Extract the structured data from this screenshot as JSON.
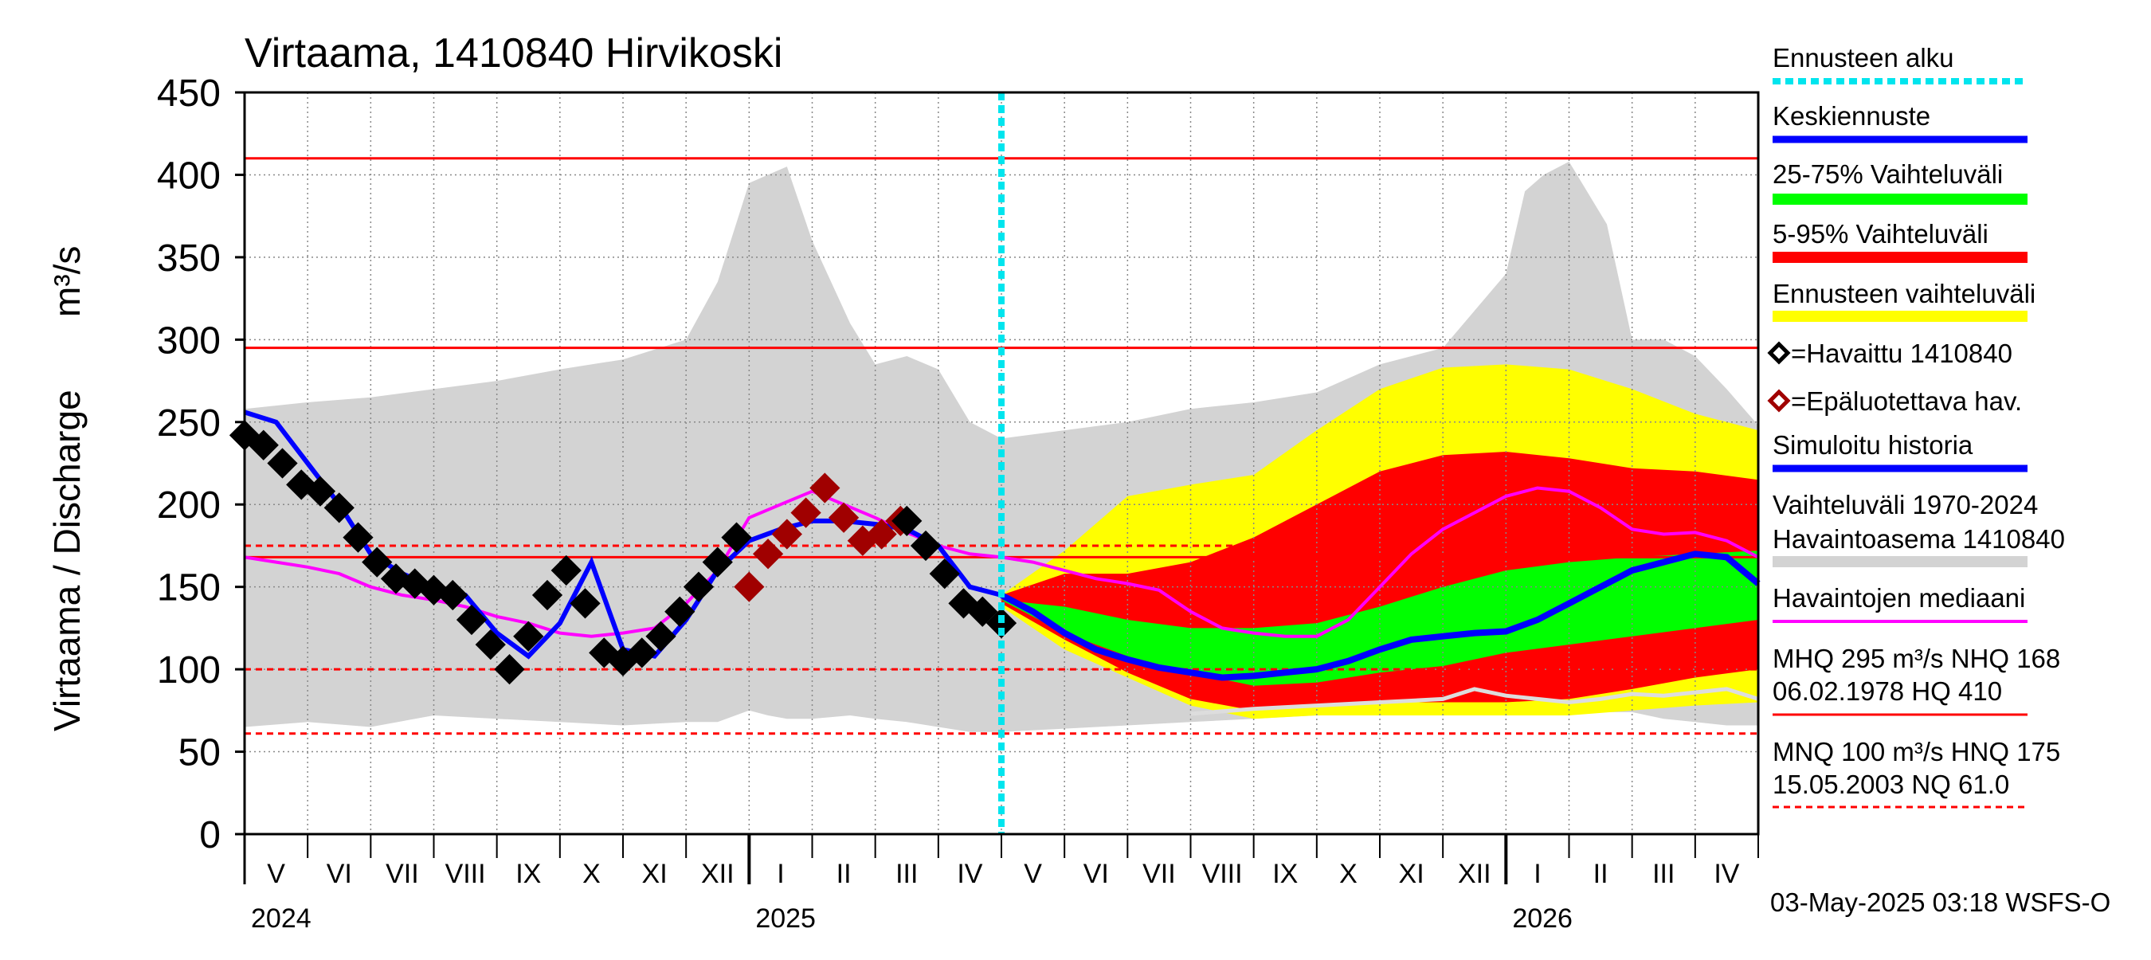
{
  "chart_data": {
    "type": "line",
    "title": "Virtaama, 1410840 Hirvikoski",
    "ylabel": "Virtaama / Discharge",
    "yunit": "m³/s",
    "ylim": [
      0,
      450
    ],
    "yticks": [
      "0",
      "50",
      "100",
      "150",
      "200",
      "250",
      "300",
      "350",
      "400",
      "450"
    ],
    "x_months": [
      "V",
      "VI",
      "VII",
      "VIII",
      "IX",
      "X",
      "XI",
      "XII",
      "I",
      "II",
      "III",
      "IV",
      "V",
      "VI",
      "VII",
      "VIII",
      "IX",
      "X",
      "XI",
      "XII",
      "I",
      "II",
      "III",
      "IV"
    ],
    "x_years": [
      "2024",
      "2025",
      "2026"
    ],
    "x_range_months": [
      0,
      24
    ],
    "forecast_start_month": 12,
    "reference_lines": [
      {
        "name": "HQ",
        "value": 410,
        "style": "solid",
        "color": "#ff0000"
      },
      {
        "name": "MHQ",
        "value": 295,
        "style": "solid",
        "color": "#ff0000"
      },
      {
        "name": "HNQ",
        "value": 175,
        "style": "dashed",
        "color": "#ff0000"
      },
      {
        "name": "NHQ",
        "value": 168,
        "style": "solid",
        "color": "#ff0000"
      },
      {
        "name": "MNQ",
        "value": 100,
        "style": "dashed",
        "color": "#ff0000"
      },
      {
        "name": "NQ",
        "value": 61,
        "style": "dashed",
        "color": "#ff0000"
      }
    ],
    "history_band": {
      "name": "Vaihteluväli 1970-2024 Havaintoasema 1410840",
      "color": "#d3d3d3",
      "x": [
        0,
        1,
        2,
        3,
        4,
        5,
        6,
        7,
        7.5,
        8,
        8.3,
        8.6,
        9,
        9.6,
        10,
        10.5,
        11,
        11.5,
        12,
        13,
        14,
        15,
        16,
        17,
        18,
        19,
        20,
        20.3,
        20.6,
        21,
        21.6,
        22,
        22.5,
        23,
        23.5,
        24
      ],
      "upper": [
        258,
        262,
        265,
        270,
        275,
        282,
        288,
        300,
        335,
        395,
        400,
        405,
        360,
        310,
        285,
        290,
        282,
        250,
        240,
        245,
        250,
        258,
        262,
        268,
        285,
        295,
        340,
        390,
        400,
        408,
        370,
        300,
        300,
        290,
        270,
        248
      ],
      "lower": [
        65,
        68,
        65,
        72,
        70,
        68,
        66,
        68,
        68,
        75,
        72,
        70,
        70,
        72,
        70,
        68,
        65,
        62,
        62,
        64,
        66,
        68,
        70,
        72,
        74,
        74,
        78,
        80,
        78,
        76,
        74,
        74,
        70,
        68,
        66,
        66
      ]
    },
    "forecast_bands": [
      {
        "name": "Ennusteen vaihteluväli",
        "color": "#ffff00",
        "x": [
          12,
          13,
          14,
          15,
          16,
          17,
          18,
          19,
          20,
          21,
          22,
          23,
          24
        ],
        "upper": [
          145,
          172,
          205,
          212,
          218,
          245,
          270,
          283,
          285,
          282,
          270,
          255,
          245
        ],
        "lower": [
          138,
          112,
          95,
          78,
          70,
          72,
          72,
          72,
          72,
          72,
          75,
          78,
          80
        ]
      },
      {
        "name": "5-95% Vaihteluväli",
        "color": "#ff0000",
        "x": [
          12,
          13,
          14,
          15,
          16,
          17,
          18,
          19,
          20,
          21,
          22,
          23,
          24
        ],
        "upper": [
          145,
          158,
          158,
          165,
          180,
          200,
          220,
          230,
          232,
          228,
          222,
          220,
          215
        ],
        "lower": [
          140,
          118,
          98,
          82,
          75,
          78,
          80,
          80,
          80,
          82,
          88,
          95,
          100
        ]
      },
      {
        "name": "25-75% Vaihteluväli",
        "color": "#00ff00",
        "x": [
          12,
          13,
          14,
          15,
          16,
          17,
          18,
          19,
          20,
          21,
          22,
          23,
          24
        ],
        "upper": [
          142,
          138,
          130,
          125,
          125,
          128,
          138,
          150,
          160,
          165,
          168,
          170,
          172
        ],
        "lower": [
          142,
          122,
          108,
          98,
          90,
          92,
          98,
          102,
          110,
          115,
          120,
          125,
          130
        ]
      }
    ],
    "series": [
      {
        "name": "Havaintojen mediaani",
        "color": "#ff00ff",
        "x": [
          0,
          0.5,
          1,
          1.5,
          2,
          2.5,
          3,
          3.5,
          4,
          4.5,
          5,
          5.5,
          6,
          6.5,
          7,
          7.5,
          8,
          8.5,
          9,
          9.5,
          10,
          10.5,
          11,
          11.5,
          12,
          12.5,
          13,
          13.5,
          14,
          14.5,
          15,
          15.5,
          16,
          16.5,
          17,
          17.5,
          18,
          18.5,
          19,
          19.5,
          20,
          20.5,
          21,
          21.5,
          22,
          22.5,
          23,
          23.5,
          24
        ],
        "y": [
          168,
          165,
          162,
          158,
          150,
          145,
          142,
          138,
          132,
          128,
          122,
          120,
          122,
          125,
          140,
          160,
          192,
          200,
          208,
          200,
          192,
          183,
          175,
          170,
          168,
          165,
          160,
          155,
          152,
          148,
          135,
          125,
          122,
          120,
          120,
          130,
          150,
          170,
          185,
          195,
          205,
          210,
          208,
          198,
          185,
          182,
          183,
          178,
          168
        ]
      },
      {
        "name": "Keskiennuste",
        "color": "#0000ff",
        "x": [
          12,
          12.5,
          13,
          13.5,
          14,
          14.5,
          15,
          15.5,
          16,
          16.5,
          17,
          17.5,
          18,
          18.5,
          19,
          19.5,
          20,
          20.5,
          21,
          21.5,
          22,
          22.5,
          23,
          23.5,
          24
        ],
        "y": [
          145,
          135,
          122,
          112,
          106,
          101,
          98,
          95,
          96,
          98,
          100,
          105,
          112,
          118,
          120,
          122,
          123,
          130,
          140,
          150,
          160,
          165,
          170,
          168,
          152
        ]
      },
      {
        "name": "Simuloitu historia",
        "color": "#0000ff",
        "x": [
          0,
          0.5,
          1,
          1.5,
          2,
          2.5,
          3,
          3.5,
          4,
          4.5,
          5,
          5.5,
          6,
          6.5,
          7,
          7.5,
          8,
          8.5,
          9,
          9.5,
          10,
          10.5,
          11,
          11.5,
          12
        ],
        "y": [
          256,
          250,
          225,
          200,
          170,
          158,
          150,
          145,
          122,
          108,
          128,
          165,
          112,
          108,
          130,
          160,
          178,
          185,
          190,
          190,
          188,
          185,
          175,
          150,
          145
        ]
      },
      {
        "name": "Alempi ennustetaso",
        "color": "#dddddd",
        "x": [
          15,
          16,
          17,
          18,
          19,
          19.5,
          20,
          20.5,
          21,
          21.5,
          22,
          22.5,
          23,
          23.5,
          24
        ],
        "y": [
          73,
          76,
          78,
          80,
          82,
          88,
          84,
          82,
          80,
          82,
          85,
          84,
          86,
          88,
          82
        ]
      }
    ],
    "observed": {
      "name": "=Havaittu 1410840",
      "color": "#000000",
      "x": [
        0,
        0.3,
        0.6,
        0.9,
        1.2,
        1.5,
        1.8,
        2.1,
        2.4,
        2.7,
        3.0,
        3.3,
        3.6,
        3.9,
        4.2,
        4.5,
        4.8,
        5.1,
        5.4,
        5.7,
        6.0,
        6.3,
        6.6,
        6.9,
        7.2,
        7.5,
        7.8,
        10.5,
        10.8,
        11.1,
        11.4,
        11.7,
        12.0
      ],
      "y": [
        242,
        236,
        225,
        212,
        208,
        198,
        180,
        165,
        155,
        152,
        148,
        145,
        130,
        115,
        100,
        120,
        145,
        160,
        140,
        110,
        105,
        110,
        120,
        135,
        150,
        165,
        180,
        190,
        175,
        158,
        140,
        135,
        128
      ]
    },
    "observed_unreliable": {
      "name": "=Epäluotettava hav.",
      "color": "#a00000",
      "x": [
        8.0,
        8.3,
        8.6,
        8.9,
        9.2,
        9.5,
        9.8,
        10.1,
        10.4
      ],
      "y": [
        150,
        170,
        182,
        195,
        210,
        192,
        178,
        182,
        190
      ]
    },
    "legend": {
      "forecast_start": "Ennusteen alku",
      "mean_forecast": "Keskiennuste",
      "band_25_75": "25-75% Vaihteluväli",
      "band_5_95": "5-95% Vaihteluväli",
      "forecast_range": "Ennusteen vaihteluväli",
      "observed": "=Havaittu 1410840",
      "unreliable": "=Epäluotettava hav.",
      "simulated": "Simuloitu historia",
      "range_line1": "Vaihteluväli 1970-2024",
      "range_line2": " Havaintoasema 1410840",
      "median": "Havaintojen mediaani",
      "mhq_line1": "MHQ  295 m³/s NHQ  168",
      "mhq_line2": "06.02.1978 HQ  410",
      "mnq_line1": "MNQ  100 m³/s HNQ  175",
      "mnq_line2": "15.05.2003 NQ 61.0"
    },
    "legend_colors": {
      "forecast_start": "#00e5ee",
      "mean_forecast": "#0000ff",
      "band_25_75": "#00ff00",
      "band_5_95": "#ff0000",
      "forecast_range": "#ffff00",
      "simulated": "#0000ff",
      "range": "#d3d3d3",
      "median": "#ff00ff",
      "ref": "#ff0000"
    },
    "footer": "03-May-2025 03:18 WSFS-O"
  }
}
